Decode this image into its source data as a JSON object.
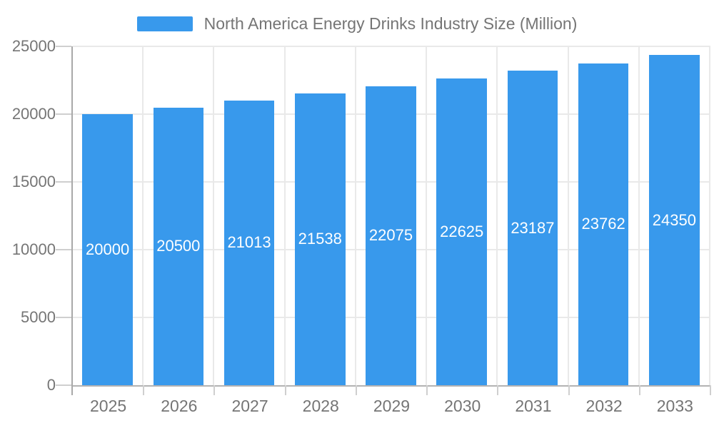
{
  "chart_data": {
    "type": "bar",
    "title": "North America Energy Drinks Industry Size (Million)",
    "categories": [
      "2025",
      "2026",
      "2027",
      "2028",
      "2029",
      "2030",
      "2031",
      "2032",
      "2033"
    ],
    "values": [
      20000,
      20500,
      21013,
      21538,
      22075,
      22625,
      23187,
      23762,
      24350
    ],
    "value_labels": [
      "20000",
      "20500",
      "21013",
      "21538",
      "22075",
      "22625",
      "23187",
      "23762",
      "24350"
    ],
    "xlabel": "",
    "ylabel": "",
    "ylim": [
      0,
      25000
    ],
    "yticks": [
      0,
      5000,
      10000,
      15000,
      20000,
      25000
    ],
    "ytick_labels": [
      "0",
      "5000",
      "10000",
      "15000",
      "20000",
      "25000"
    ],
    "grid": true,
    "legend_position": "top",
    "bar_color": "#3899ec",
    "value_label_color": "#ffffff",
    "axis_text_color": "#757575"
  },
  "legend": {
    "series_label": "North America Energy Drinks Industry Size (Million)"
  }
}
